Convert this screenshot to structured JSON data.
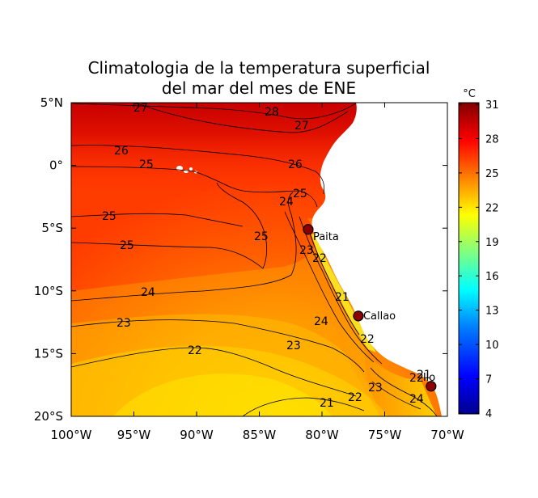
{
  "title": {
    "line1": "Climatologia de la temperatura superficial",
    "line2": "del mar del mes de ENE"
  },
  "colorbar": {
    "unit": "°C",
    "ticks": [
      "31",
      "28",
      "25",
      "22",
      "19",
      "16",
      "13",
      "10",
      "7",
      "4"
    ],
    "range": [
      4,
      31
    ],
    "colors": [
      "#00008f",
      "#0000ff",
      "#0080ff",
      "#00ffff",
      "#80ff80",
      "#ffff00",
      "#ff8000",
      "#ff0000",
      "#800000"
    ]
  },
  "axes": {
    "lon_ticks": [
      "100°W",
      "95°W",
      "90°W",
      "85°W",
      "80°W",
      "75°W",
      "70°W"
    ],
    "lat_ticks": [
      "5°N",
      "0°",
      "5°S",
      "10°S",
      "15°S",
      "20°S"
    ],
    "lon_range": [
      -100,
      -70
    ],
    "lat_range": [
      -20,
      5
    ]
  },
  "contour_labels": [
    "27",
    "28",
    "27",
    "26",
    "25",
    "26",
    "25",
    "24",
    "25",
    "25",
    "25",
    "23",
    "22",
    "24",
    "23",
    "24",
    "21",
    "23",
    "22",
    "22",
    "23",
    "21",
    "22",
    "24",
    "22",
    "21"
  ],
  "cities": [
    {
      "name": "Paita",
      "lon": -81.1,
      "lat": -5.1
    },
    {
      "name": "Callao",
      "lon": -77.1,
      "lat": -12.0
    },
    {
      "name": "Ilo",
      "lon": -71.3,
      "lat": -17.6
    }
  ],
  "land_color": "#ffffff",
  "marker_color": "#8b0000"
}
